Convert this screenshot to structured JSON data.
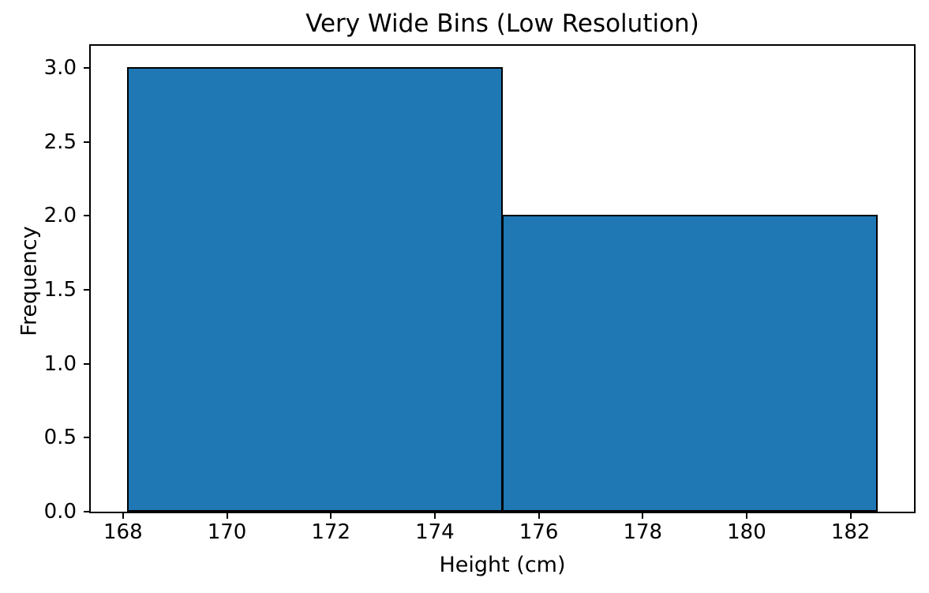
{
  "figure": {
    "background": "#ffffff",
    "text_color": "#000000"
  },
  "chart_data": {
    "type": "bar",
    "variant": "histogram",
    "title": "Very Wide Bins (Low Resolution)",
    "xlabel": "Height (cm)",
    "ylabel": "Frequency",
    "bin_edges": [
      168.1,
      175.3,
      182.5
    ],
    "counts": [
      3,
      2
    ],
    "xlim": [
      167.38,
      183.22
    ],
    "ylim": [
      0,
      3.15
    ],
    "x_ticks": [
      168,
      170,
      172,
      174,
      176,
      178,
      180,
      182
    ],
    "x_tick_labels": [
      "168",
      "170",
      "172",
      "174",
      "176",
      "178",
      "180",
      "182"
    ],
    "y_ticks": [
      0,
      0.5,
      1,
      1.5,
      2,
      2.5,
      3
    ],
    "y_tick_labels": [
      "0.0",
      "0.5",
      "1.0",
      "1.5",
      "2.0",
      "2.5",
      "3.0"
    ],
    "bar_fill": "#1f77b4",
    "bar_edge": "#000000",
    "grid": false,
    "legend": null
  }
}
